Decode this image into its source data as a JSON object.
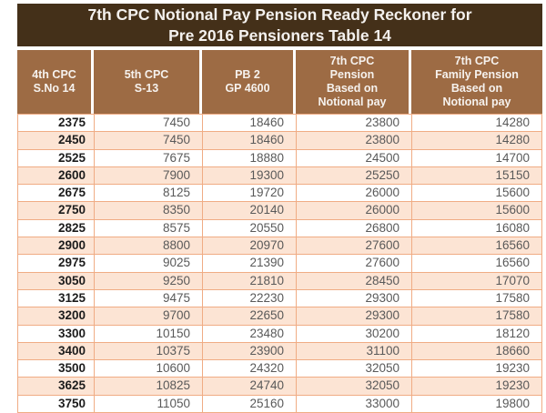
{
  "title": {
    "line1": "7th CPC Notional Pay Pension Ready Reckoner for",
    "line2": "Pre 2016 Pensioners Table 14"
  },
  "table": {
    "columns": [
      "4th CPC\nS.No 14",
      "5th CPC\nS-13",
      "PB 2\nGP 4600",
      "7th CPC\nPension\nBased on\nNotional pay",
      "7th CPC\nFamily Pension\nBased on\nNotional pay"
    ],
    "rows": [
      [
        "2375",
        "7450",
        "18460",
        "23800",
        "14280"
      ],
      [
        "2450",
        "7450",
        "18460",
        "23800",
        "14280"
      ],
      [
        "2525",
        "7675",
        "18880",
        "24500",
        "14700"
      ],
      [
        "2600",
        "7900",
        "19300",
        "25250",
        "15150"
      ],
      [
        "2675",
        "8125",
        "19720",
        "26000",
        "15600"
      ],
      [
        "2750",
        "8350",
        "20140",
        "26000",
        "15600"
      ],
      [
        "2825",
        "8575",
        "20550",
        "26800",
        "16080"
      ],
      [
        "2900",
        "8800",
        "20970",
        "27600",
        "16560"
      ],
      [
        "2975",
        "9025",
        "21390",
        "27600",
        "16560"
      ],
      [
        "3050",
        "9250",
        "21810",
        "28450",
        "17070"
      ],
      [
        "3125",
        "9475",
        "22230",
        "29300",
        "17580"
      ],
      [
        "3200",
        "9700",
        "22650",
        "29300",
        "17580"
      ],
      [
        "3300",
        "10150",
        "23480",
        "30200",
        "18120"
      ],
      [
        "3400",
        "10375",
        "23900",
        "31100",
        "18660"
      ],
      [
        "3500",
        "10600",
        "24320",
        "32050",
        "19230"
      ],
      [
        "3625",
        "10825",
        "24740",
        "32050",
        "19230"
      ],
      [
        "3750",
        "11050",
        "25160",
        "33000",
        "19800"
      ]
    ]
  },
  "colors": {
    "title_bg": "#443019",
    "header_bg": "#9d6b44",
    "row_alt_bg": "#fce4d4",
    "border": "#f0ac84",
    "col1_text": "#1c1c1c",
    "number_text": "#595959"
  }
}
